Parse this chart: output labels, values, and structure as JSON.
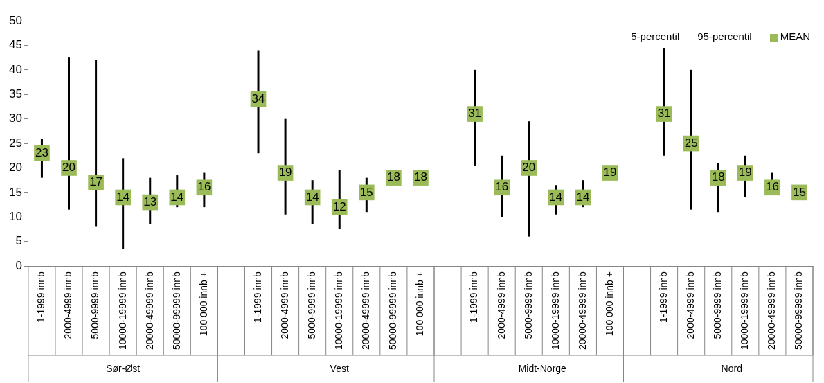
{
  "chart_data": {
    "type": "scatter",
    "categories": [
      "1-1999 innb",
      "2000-4999 innb",
      "5000-9999 innb",
      "10000-19999 innb",
      "20000-49999 innb",
      "50000-99999 innb",
      "100 000 innb +",
      null,
      "1-1999 innb",
      "2000-4999 innb",
      "5000-9999 innb",
      "10000-19999 innb",
      "20000-49999 innb",
      "50000-99999 innb",
      "100 000 innb +",
      null,
      "1-1999 innb",
      "2000-4999 innb",
      "5000-9999 innb",
      "10000-19999 innb",
      "20000-49999 innb",
      "100 000 innb +",
      null,
      "1-1999 innb",
      "2000-4999 innb",
      "5000-9999 innb",
      "10000-19999 innb",
      "20000-49999 innb",
      "50000-99999 innb"
    ],
    "series": [
      {
        "name": "MEAN",
        "color": "#9bbb59",
        "values": [
          23,
          20,
          17,
          14,
          13,
          14,
          16,
          null,
          34,
          19,
          14,
          12,
          15,
          18,
          18,
          null,
          31,
          16,
          20,
          14,
          14,
          19,
          null,
          31,
          25,
          18,
          19,
          16,
          15
        ],
        "errors": [
          [
            18,
            26
          ],
          [
            11.5,
            42.5
          ],
          [
            8,
            42
          ],
          [
            3.5,
            22
          ],
          [
            8.5,
            18
          ],
          [
            12,
            18.5
          ],
          [
            12,
            19
          ],
          null,
          [
            23,
            44
          ],
          [
            10.5,
            30
          ],
          [
            8.5,
            17.5
          ],
          [
            7.5,
            19.5
          ],
          [
            11,
            18
          ],
          null,
          null,
          null,
          [
            20.5,
            40
          ],
          [
            10,
            22.5
          ],
          [
            6,
            29.5
          ],
          [
            10.5,
            16.5
          ],
          [
            12,
            17.5
          ],
          null,
          null,
          [
            22.5,
            44.5
          ],
          [
            11.5,
            40
          ],
          [
            11,
            21
          ],
          [
            14,
            22.5
          ],
          [
            15.5,
            19
          ],
          null
        ]
      }
    ],
    "marker": "square",
    "data_labels": true,
    "ylim": [
      0,
      50
    ],
    "yticks": [
      0,
      5,
      10,
      15,
      20,
      25,
      30,
      35,
      40,
      45,
      50
    ],
    "grid": false,
    "legend": "top right",
    "annotations": [
      "Sør-Øst",
      "Vest",
      "Midt-Norge",
      "Nord",
      "5-percentil",
      "95-percentil"
    ]
  }
}
